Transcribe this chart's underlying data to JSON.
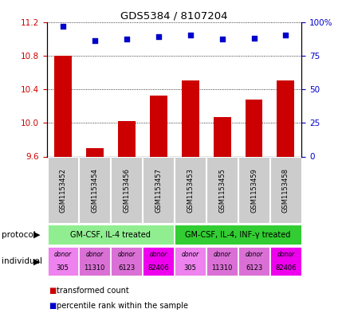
{
  "title": "GDS5384 / 8107204",
  "samples": [
    "GSM1153452",
    "GSM1153454",
    "GSM1153456",
    "GSM1153457",
    "GSM1153453",
    "GSM1153455",
    "GSM1153459",
    "GSM1153458"
  ],
  "transformed_count": [
    10.8,
    9.7,
    10.02,
    10.32,
    10.5,
    10.07,
    10.28,
    10.5
  ],
  "percentile_rank": [
    97,
    86,
    87,
    89,
    90,
    87,
    88,
    90
  ],
  "ylim_left": [
    9.6,
    11.2
  ],
  "ylim_right": [
    0,
    100
  ],
  "yticks_left": [
    9.6,
    10.0,
    10.4,
    10.8,
    11.2
  ],
  "yticks_right": [
    0,
    25,
    50,
    75,
    100
  ],
  "ytick_labels_right": [
    "0",
    "25",
    "50",
    "75",
    "100%"
  ],
  "bar_color": "#cc0000",
  "dot_color": "#0000cc",
  "bar_bottom": 9.6,
  "protocol_groups": [
    {
      "label": "GM-CSF, IL-4 treated",
      "start": 0,
      "end": 4,
      "color": "#90ee90"
    },
    {
      "label": "GM-CSF, IL-4, INF-γ treated",
      "start": 4,
      "end": 8,
      "color": "#32cd32"
    }
  ],
  "individuals": [
    {
      "donor": "305",
      "color": "#ee82ee"
    },
    {
      "donor": "11310",
      "color": "#da70d6"
    },
    {
      "donor": "6123",
      "color": "#da70d6"
    },
    {
      "donor": "82406",
      "color": "#ee00ee"
    },
    {
      "donor": "305",
      "color": "#ee82ee"
    },
    {
      "donor": "11310",
      "color": "#da70d6"
    },
    {
      "donor": "6123",
      "color": "#da70d6"
    },
    {
      "donor": "82406",
      "color": "#ee00ee"
    }
  ],
  "legend_items": [
    {
      "label": "transformed count",
      "color": "#cc0000"
    },
    {
      "label": "percentile rank within the sample",
      "color": "#0000cc"
    }
  ],
  "background_color": "#ffffff",
  "sample_bg_color": "#cccccc",
  "xlabel_color_left": "#cc0000",
  "xlabel_color_right": "#0000cc"
}
